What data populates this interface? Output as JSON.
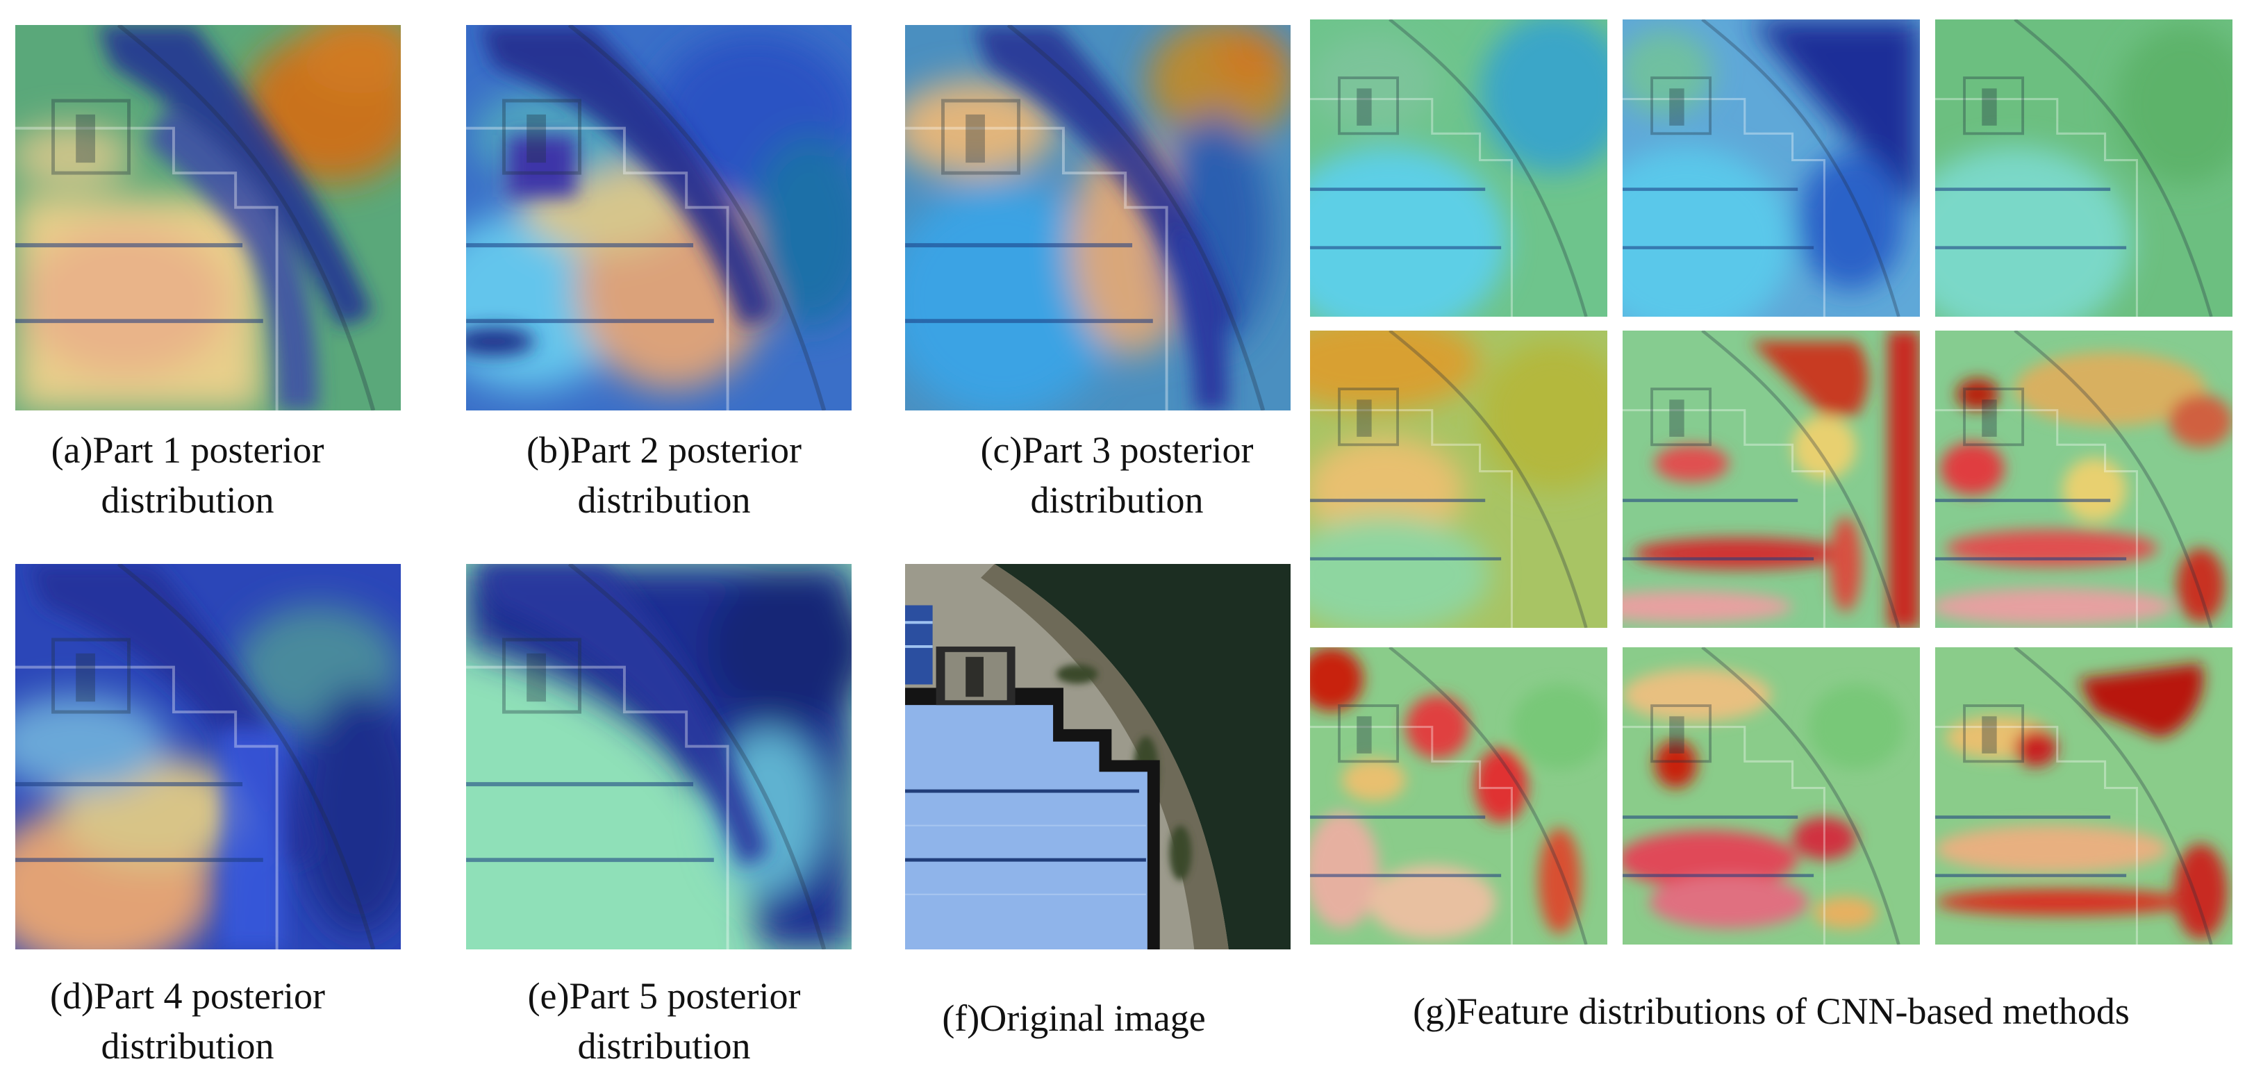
{
  "figure": {
    "captions": {
      "a": [
        "(a)Part 1 posterior",
        "distribution"
      ],
      "b": [
        "(b)Part 2 posterior",
        "distribution"
      ],
      "c": [
        "(c)Part 3 posterior",
        "distribution"
      ],
      "d": [
        "(d)Part 4 posterior",
        "distribution"
      ],
      "e": [
        "(e)Part 5 posterior",
        "distribution"
      ],
      "f": [
        "(f)Original image"
      ],
      "g": [
        "(g)Feature distributions of CNN-based methods"
      ]
    }
  },
  "colors": {
    "jet_dark_blue": "#1a2a8a",
    "jet_blue": "#2d5fd8",
    "jet_cyan": "#5fd6e8",
    "jet_green": "#78c878",
    "jet_yellow": "#e8d870",
    "jet_orange": "#e89a40",
    "jet_red": "#d02020",
    "roof_blue": "#8fb4ea",
    "water_dark": "#1c2e22"
  }
}
